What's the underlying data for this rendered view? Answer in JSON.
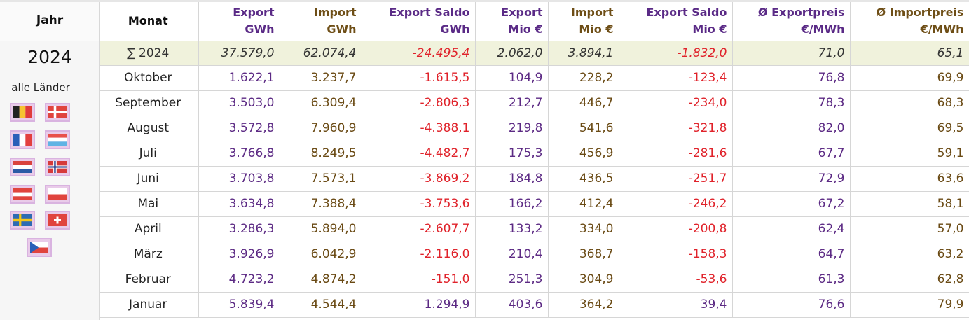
{
  "sidebar": {
    "year_header": "Jahr",
    "year": "2024",
    "all_countries": "alle Länder",
    "flags": [
      {
        "country": "Belgien",
        "icon": "flag-belgium-icon"
      },
      {
        "country": "Dänemark",
        "icon": "flag-denmark-icon"
      },
      {
        "country": "Frankreich",
        "icon": "flag-france-icon"
      },
      {
        "country": "Luxemburg",
        "icon": "flag-luxembourg-icon"
      },
      {
        "country": "Niederlande",
        "icon": "flag-netherlands-icon"
      },
      {
        "country": "Norwegen",
        "icon": "flag-norway-icon"
      },
      {
        "country": "Österreich",
        "icon": "flag-austria-icon"
      },
      {
        "country": "Polen",
        "icon": "flag-poland-icon"
      },
      {
        "country": "Schweden",
        "icon": "flag-sweden-icon"
      },
      {
        "country": "Schweiz",
        "icon": "flag-switzerland-icon"
      },
      {
        "country": "Tschechien",
        "icon": "flag-czechia-icon"
      }
    ]
  },
  "table": {
    "headers": {
      "month": "Monat",
      "export_gwh_1": "Export",
      "export_gwh_2": "GWh",
      "import_gwh_1": "Import",
      "import_gwh_2": "GWh",
      "saldo_gwh_1": "Export Saldo",
      "saldo_gwh_2": "GWh",
      "export_eur_1": "Export",
      "export_eur_2": "Mio €",
      "import_eur_1": "Import",
      "import_eur_2": "Mio €",
      "saldo_eur_1": "Export Saldo",
      "saldo_eur_2": "Mio €",
      "price_exp_1": "Ø Exportpreis",
      "price_exp_2": "€/MWh",
      "price_imp_1": "Ø Importpreis",
      "price_imp_2": "€/MWh"
    },
    "sum": {
      "label": "∑ 2024",
      "export_gwh": "37.579,0",
      "import_gwh": "62.074,4",
      "saldo_gwh": "-24.495,4",
      "export_eur": "2.062,0",
      "import_eur": "3.894,1",
      "saldo_eur": "-1.832,0",
      "price_exp": "71,0",
      "price_imp": "65,1"
    },
    "rows": [
      {
        "month": "Oktober",
        "export_gwh": "1.622,1",
        "import_gwh": "3.237,7",
        "saldo_gwh": "-1.615,5",
        "export_eur": "104,9",
        "import_eur": "228,2",
        "saldo_eur": "-123,4",
        "price_exp": "76,8",
        "price_imp": "69,9"
      },
      {
        "month": "September",
        "export_gwh": "3.503,0",
        "import_gwh": "6.309,4",
        "saldo_gwh": "-2.806,3",
        "export_eur": "212,7",
        "import_eur": "446,7",
        "saldo_eur": "-234,0",
        "price_exp": "78,3",
        "price_imp": "68,3"
      },
      {
        "month": "August",
        "export_gwh": "3.572,8",
        "import_gwh": "7.960,9",
        "saldo_gwh": "-4.388,1",
        "export_eur": "219,8",
        "import_eur": "541,6",
        "saldo_eur": "-321,8",
        "price_exp": "82,0",
        "price_imp": "69,5"
      },
      {
        "month": "Juli",
        "export_gwh": "3.766,8",
        "import_gwh": "8.249,5",
        "saldo_gwh": "-4.482,7",
        "export_eur": "175,3",
        "import_eur": "456,9",
        "saldo_eur": "-281,6",
        "price_exp": "67,7",
        "price_imp": "59,1"
      },
      {
        "month": "Juni",
        "export_gwh": "3.703,8",
        "import_gwh": "7.573,1",
        "saldo_gwh": "-3.869,2",
        "export_eur": "184,8",
        "import_eur": "436,5",
        "saldo_eur": "-251,7",
        "price_exp": "72,9",
        "price_imp": "63,6"
      },
      {
        "month": "Mai",
        "export_gwh": "3.634,8",
        "import_gwh": "7.388,4",
        "saldo_gwh": "-3.753,6",
        "export_eur": "166,2",
        "import_eur": "412,4",
        "saldo_eur": "-246,2",
        "price_exp": "67,2",
        "price_imp": "58,1"
      },
      {
        "month": "April",
        "export_gwh": "3.286,3",
        "import_gwh": "5.894,0",
        "saldo_gwh": "-2.607,7",
        "export_eur": "133,2",
        "import_eur": "334,0",
        "saldo_eur": "-200,8",
        "price_exp": "62,4",
        "price_imp": "57,0"
      },
      {
        "month": "März",
        "export_gwh": "3.926,9",
        "import_gwh": "6.042,9",
        "saldo_gwh": "-2.116,0",
        "export_eur": "210,4",
        "import_eur": "368,7",
        "saldo_eur": "-158,3",
        "price_exp": "64,7",
        "price_imp": "63,2"
      },
      {
        "month": "Februar",
        "export_gwh": "4.723,2",
        "import_gwh": "4.874,2",
        "saldo_gwh": "-151,0",
        "export_eur": "251,3",
        "import_eur": "304,9",
        "saldo_eur": "-53,6",
        "price_exp": "61,3",
        "price_imp": "62,8"
      },
      {
        "month": "Januar",
        "export_gwh": "5.839,4",
        "import_gwh": "4.544,4",
        "saldo_gwh": "1.294,9",
        "export_eur": "403,6",
        "import_eur": "364,2",
        "saldo_eur": "39,4",
        "price_exp": "76,6",
        "price_imp": "79,9"
      }
    ]
  },
  "colors": {
    "export": "#5c2a84",
    "import": "#6a4a14",
    "negative": "#e0222a",
    "sum_row_bg": "#f0f2dc",
    "flag_frame": "#e9cbe9"
  }
}
